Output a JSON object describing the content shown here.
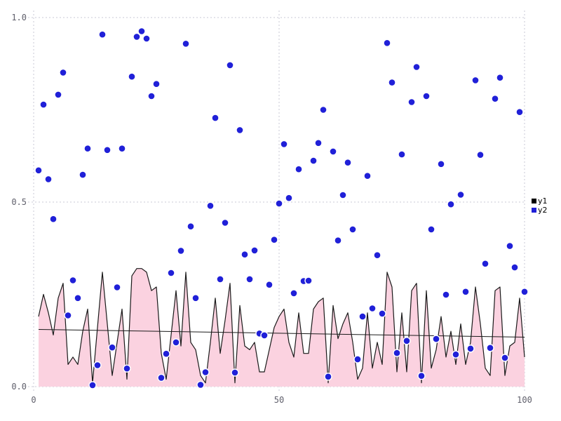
{
  "chart_data": {
    "type": "mixed",
    "title": "",
    "xlabel": "",
    "ylabel": "",
    "xlim": [
      0,
      100
    ],
    "ylim": [
      0,
      1
    ],
    "grid": true,
    "legend_position": "right",
    "x": [
      1,
      2,
      3,
      4,
      5,
      6,
      7,
      8,
      9,
      10,
      11,
      12,
      13,
      14,
      15,
      16,
      17,
      18,
      19,
      20,
      21,
      22,
      23,
      24,
      25,
      26,
      27,
      28,
      29,
      30,
      31,
      32,
      33,
      34,
      35,
      36,
      37,
      38,
      39,
      40,
      41,
      42,
      43,
      44,
      45,
      46,
      47,
      48,
      49,
      50,
      51,
      52,
      53,
      54,
      55,
      56,
      57,
      58,
      59,
      60,
      61,
      62,
      63,
      64,
      65,
      66,
      67,
      68,
      69,
      70,
      71,
      72,
      73,
      74,
      75,
      76,
      77,
      78,
      79,
      80,
      81,
      82,
      83,
      84,
      85,
      86,
      87,
      88,
      89,
      90,
      91,
      92,
      93,
      94,
      95,
      96,
      97,
      98,
      99,
      100
    ],
    "series": [
      {
        "name": "y1",
        "type": "area",
        "color": "#1a1a1a",
        "fill": "#fbd2e0",
        "values": [
          0.19,
          0.25,
          0.2,
          0.14,
          0.24,
          0.28,
          0.06,
          0.08,
          0.06,
          0.15,
          0.21,
          0.01,
          0.16,
          0.31,
          0.17,
          0.03,
          0.12,
          0.21,
          0.02,
          0.3,
          0.32,
          0.32,
          0.31,
          0.26,
          0.27,
          0.09,
          0.02,
          0.14,
          0.26,
          0.11,
          0.31,
          0.12,
          0.1,
          0.03,
          0.01,
          0.12,
          0.24,
          0.09,
          0.18,
          0.28,
          0.01,
          0.22,
          0.11,
          0.1,
          0.12,
          0.04,
          0.04,
          0.1,
          0.16,
          0.19,
          0.21,
          0.12,
          0.08,
          0.2,
          0.09,
          0.09,
          0.21,
          0.23,
          0.24,
          0.01,
          0.22,
          0.13,
          0.17,
          0.2,
          0.12,
          0.02,
          0.05,
          0.2,
          0.05,
          0.12,
          0.06,
          0.31,
          0.27,
          0.04,
          0.2,
          0.04,
          0.26,
          0.28,
          0.01,
          0.26,
          0.05,
          0.1,
          0.19,
          0.08,
          0.15,
          0.06,
          0.17,
          0.06,
          0.12,
          0.27,
          0.17,
          0.05,
          0.03,
          0.26,
          0.27,
          0.03,
          0.11,
          0.12,
          0.24,
          0.08
        ]
      },
      {
        "name": "y2",
        "type": "scatter",
        "color": "#2020d8",
        "marker_outline": "#ffffff",
        "values": [
          0.586,
          0.764,
          0.562,
          0.454,
          0.791,
          0.851,
          0.193,
          0.288,
          0.24,
          0.574,
          0.645,
          0.004,
          0.058,
          0.954,
          0.641,
          0.106,
          0.269,
          0.645,
          0.049,
          0.84,
          0.948,
          0.963,
          0.943,
          0.787,
          0.82,
          0.024,
          0.089,
          0.308,
          0.12,
          0.368,
          0.929,
          0.434,
          0.24,
          0.005,
          0.039,
          0.49,
          0.728,
          0.291,
          0.444,
          0.871,
          0.038,
          0.695,
          0.358,
          0.291,
          0.369,
          0.144,
          0.139,
          0.276,
          0.398,
          0.496,
          0.657,
          0.511,
          0.253,
          0.589,
          0.286,
          0.287,
          0.612,
          0.66,
          0.75,
          0.027,
          0.637,
          0.396,
          0.519,
          0.607,
          0.426,
          0.074,
          0.19,
          0.571,
          0.212,
          0.356,
          0.198,
          0.931,
          0.824,
          0.091,
          0.629,
          0.124,
          0.771,
          0.866,
          0.029,
          0.787,
          0.426,
          0.129,
          0.603,
          0.249,
          0.494,
          0.087,
          0.52,
          0.257,
          0.103,
          0.83,
          0.628,
          0.333,
          0.105,
          0.78,
          0.837,
          0.078,
          0.381,
          0.323,
          0.744,
          0.257
        ]
      }
    ],
    "trend_line": {
      "from": {
        "x": 1,
        "y": 0.155
      },
      "to": {
        "x": 100,
        "y": 0.134
      },
      "color": "#1a1a1a"
    },
    "xticks": [
      {
        "value": 0,
        "label": "0"
      },
      {
        "value": 50,
        "label": "50"
      },
      {
        "value": 100,
        "label": "100"
      }
    ],
    "yticks": [
      {
        "value": 0,
        "label": "0.0"
      },
      {
        "value": 0.5,
        "label": "0.5"
      },
      {
        "value": 1,
        "label": "1.0"
      }
    ],
    "colors": {
      "grid": "#c9c9d6",
      "tick_text": "#5f5f6b",
      "background": "#ffffff"
    }
  },
  "legend": {
    "items": [
      {
        "label": "y1"
      },
      {
        "label": "y2"
      }
    ]
  }
}
